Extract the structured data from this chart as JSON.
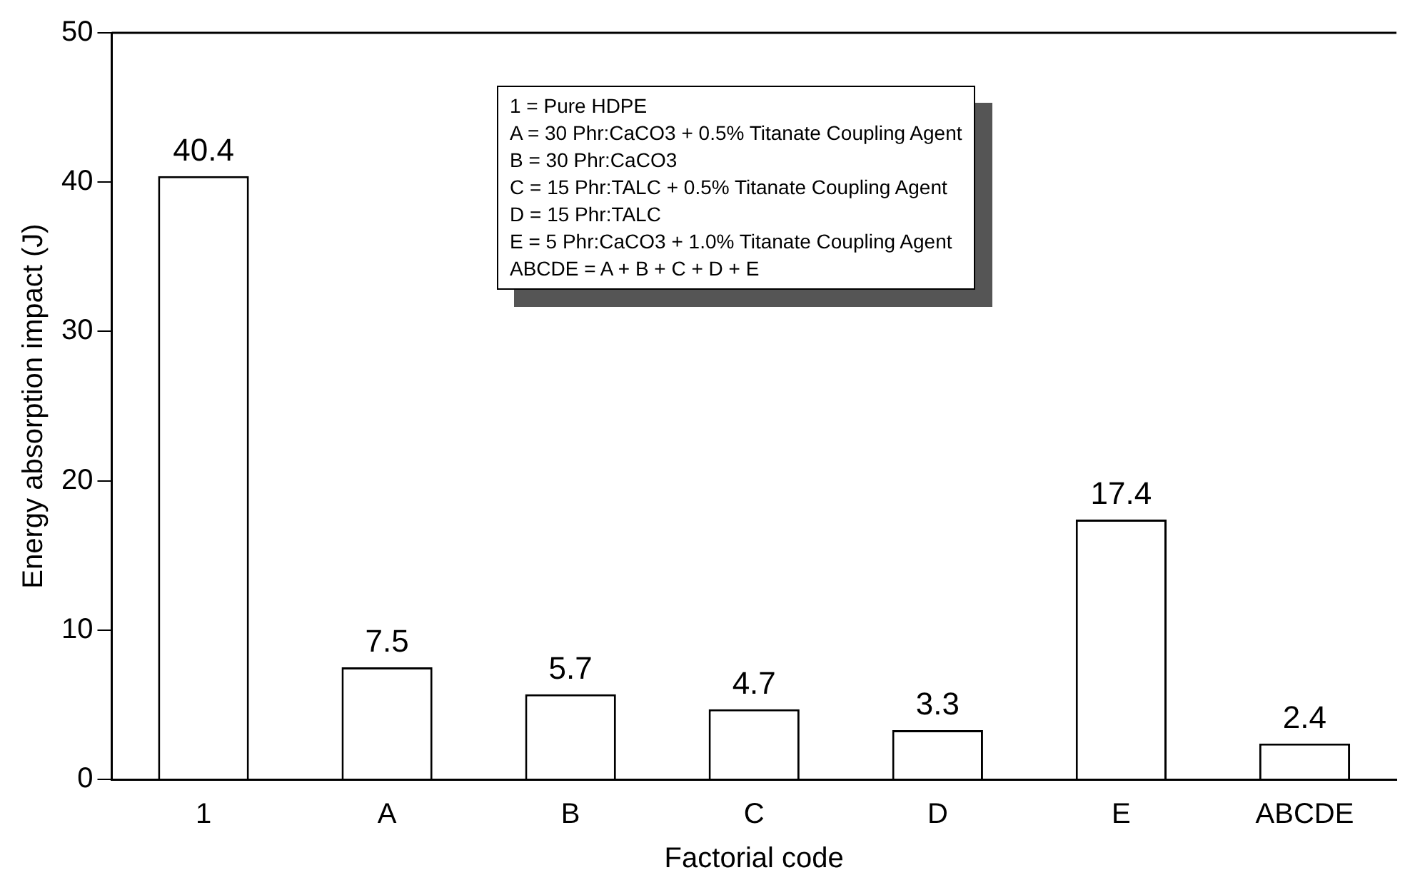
{
  "chart_data": {
    "type": "bar",
    "xlabel": "Factorial code",
    "ylabel": "Energy absorption impact (J)",
    "categories": [
      "1",
      "A",
      "B",
      "C",
      "D",
      "E",
      "ABCDE"
    ],
    "values": [
      40.4,
      7.5,
      5.7,
      4.7,
      3.3,
      17.4,
      2.4
    ],
    "color": "#ffffff",
    "ylim": [
      0,
      50
    ],
    "yticks": [
      0,
      10,
      20,
      30,
      40,
      50
    ],
    "grid": false,
    "data_labels": true,
    "annotations": [
      "1 =  Pure HDPE",
      "A = 30 Phr:CaCO3 + 0.5% Titanate Coupling Agent",
      "B = 30 Phr:CaCO3",
      "C = 15 Phr:TALC + 0.5% Titanate Coupling Agent",
      "D = 15 Phr:TALC",
      "E = 5 Phr:CaCO3 + 1.0% Titanate Coupling Agent",
      "ABCDE = A + B + C + D + E"
    ]
  }
}
